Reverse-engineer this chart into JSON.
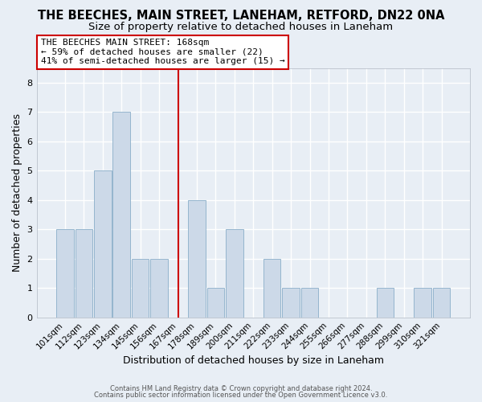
{
  "title": "THE BEECHES, MAIN STREET, LANEHAM, RETFORD, DN22 0NA",
  "subtitle": "Size of property relative to detached houses in Laneham",
  "xlabel": "Distribution of detached houses by size in Laneham",
  "ylabel": "Number of detached properties",
  "bar_labels": [
    "101sqm",
    "112sqm",
    "123sqm",
    "134sqm",
    "145sqm",
    "156sqm",
    "167sqm",
    "178sqm",
    "189sqm",
    "200sqm",
    "211sqm",
    "222sqm",
    "233sqm",
    "244sqm",
    "255sqm",
    "266sqm",
    "277sqm",
    "288sqm",
    "299sqm",
    "310sqm",
    "321sqm"
  ],
  "bar_values": [
    3,
    3,
    5,
    7,
    2,
    2,
    0,
    4,
    1,
    3,
    0,
    2,
    1,
    1,
    0,
    0,
    0,
    1,
    0,
    1,
    1
  ],
  "bar_color": "#ccd9e8",
  "bar_edge_color": "#8aaec8",
  "vline_x_index": 6,
  "vline_color": "#cc0000",
  "annotation_text": "THE BEECHES MAIN STREET: 168sqm\n← 59% of detached houses are smaller (22)\n41% of semi-detached houses are larger (15) →",
  "annotation_box_color": "#ffffff",
  "annotation_box_edge": "#cc0000",
  "ylim": [
    0,
    8.5
  ],
  "yticks": [
    0,
    1,
    2,
    3,
    4,
    5,
    6,
    7,
    8
  ],
  "footer1": "Contains HM Land Registry data © Crown copyright and database right 2024.",
  "footer2": "Contains public sector information licensed under the Open Government Licence v3.0.",
  "background_color": "#e8eef5",
  "plot_bg_color": "#e8eef5",
  "grid_color": "#ffffff",
  "title_fontsize": 10.5,
  "subtitle_fontsize": 9.5,
  "annotation_fontsize": 8,
  "tick_fontsize": 7.5,
  "axis_label_fontsize": 9
}
